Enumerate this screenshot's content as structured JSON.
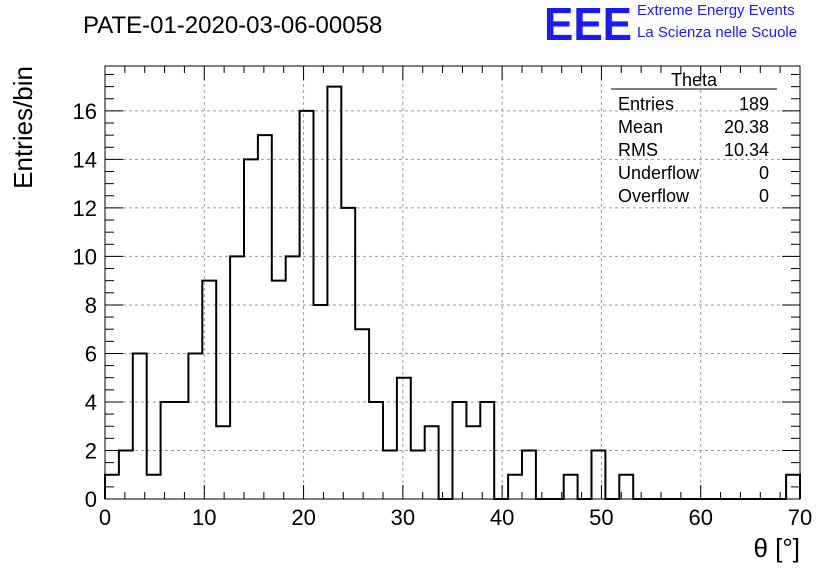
{
  "chart_data": {
    "type": "bar",
    "title": "PATE-01-2020-03-06-00058",
    "xlabel": "θ [°]",
    "ylabel": "Entries/bin",
    "xlim": [
      0,
      70
    ],
    "ylim": [
      0,
      17.85
    ],
    "bin_width": 1.4,
    "x_ticks": [
      0,
      10,
      20,
      30,
      40,
      50,
      60,
      70
    ],
    "y_ticks": [
      0,
      2,
      4,
      6,
      8,
      10,
      12,
      14,
      16
    ],
    "grid": true,
    "values": [
      1,
      2,
      6,
      1,
      4,
      4,
      6,
      9,
      3,
      10,
      14,
      15,
      9,
      10,
      16,
      8,
      17,
      12,
      7,
      4,
      2,
      5,
      2,
      3,
      0,
      4,
      3,
      4,
      0,
      1,
      2,
      0,
      0,
      1,
      0,
      2,
      0,
      1,
      0,
      0,
      0,
      0,
      0,
      0,
      0,
      0,
      0,
      0,
      0,
      1
    ],
    "stats_box": {
      "title": "Theta",
      "rows": [
        {
          "label": "Entries",
          "value": "189"
        },
        {
          "label": "Mean",
          "value": "20.38"
        },
        {
          "label": "RMS",
          "value": "10.34"
        },
        {
          "label": "Underflow",
          "value": "0"
        },
        {
          "label": "Overflow",
          "value": "0"
        }
      ]
    }
  },
  "logo": {
    "letters": "EEE",
    "line1": "Extreme Energy Events",
    "line2": "La Scienza nelle Scuole",
    "color": "#1a1aff"
  }
}
